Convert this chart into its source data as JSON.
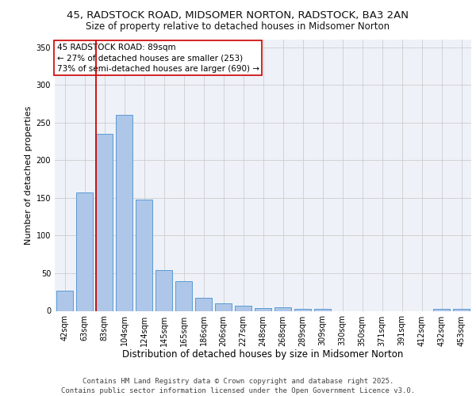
{
  "title1": "45, RADSTOCK ROAD, MIDSOMER NORTON, RADSTOCK, BA3 2AN",
  "title2": "Size of property relative to detached houses in Midsomer Norton",
  "xlabel": "Distribution of detached houses by size in Midsomer Norton",
  "ylabel": "Number of detached properties",
  "categories": [
    "42sqm",
    "63sqm",
    "83sqm",
    "104sqm",
    "124sqm",
    "145sqm",
    "165sqm",
    "186sqm",
    "206sqm",
    "227sqm",
    "248sqm",
    "268sqm",
    "289sqm",
    "309sqm",
    "330sqm",
    "350sqm",
    "371sqm",
    "391sqm",
    "412sqm",
    "432sqm",
    "453sqm"
  ],
  "values": [
    27,
    157,
    235,
    260,
    148,
    54,
    39,
    17,
    10,
    7,
    4,
    5,
    3,
    3,
    0,
    0,
    0,
    0,
    0,
    3,
    3
  ],
  "bar_color": "#aec6e8",
  "bar_edge_color": "#5b9bd5",
  "bar_linewidth": 0.7,
  "vline_color": "#cc0000",
  "vline_x_index": 2,
  "annotation_text_line1": "45 RADSTOCK ROAD: 89sqm",
  "annotation_text_line2": "← 27% of detached houses are smaller (253)",
  "annotation_text_line3": "73% of semi-detached houses are larger (690) →",
  "annotation_fontsize": 7.5,
  "annotation_box_color": "white",
  "annotation_box_edgecolor": "#cc0000",
  "ylim": [
    0,
    360
  ],
  "yticks": [
    0,
    50,
    100,
    150,
    200,
    250,
    300,
    350
  ],
  "grid_color": "#cccccc",
  "background_color": "#eef2f8",
  "footer_line1": "Contains HM Land Registry data © Crown copyright and database right 2025.",
  "footer_line2": "Contains public sector information licensed under the Open Government Licence v3.0.",
  "title1_fontsize": 9.5,
  "title2_fontsize": 8.5,
  "xlabel_fontsize": 8.5,
  "ylabel_fontsize": 8,
  "tick_fontsize": 7,
  "footer_fontsize": 6.5
}
